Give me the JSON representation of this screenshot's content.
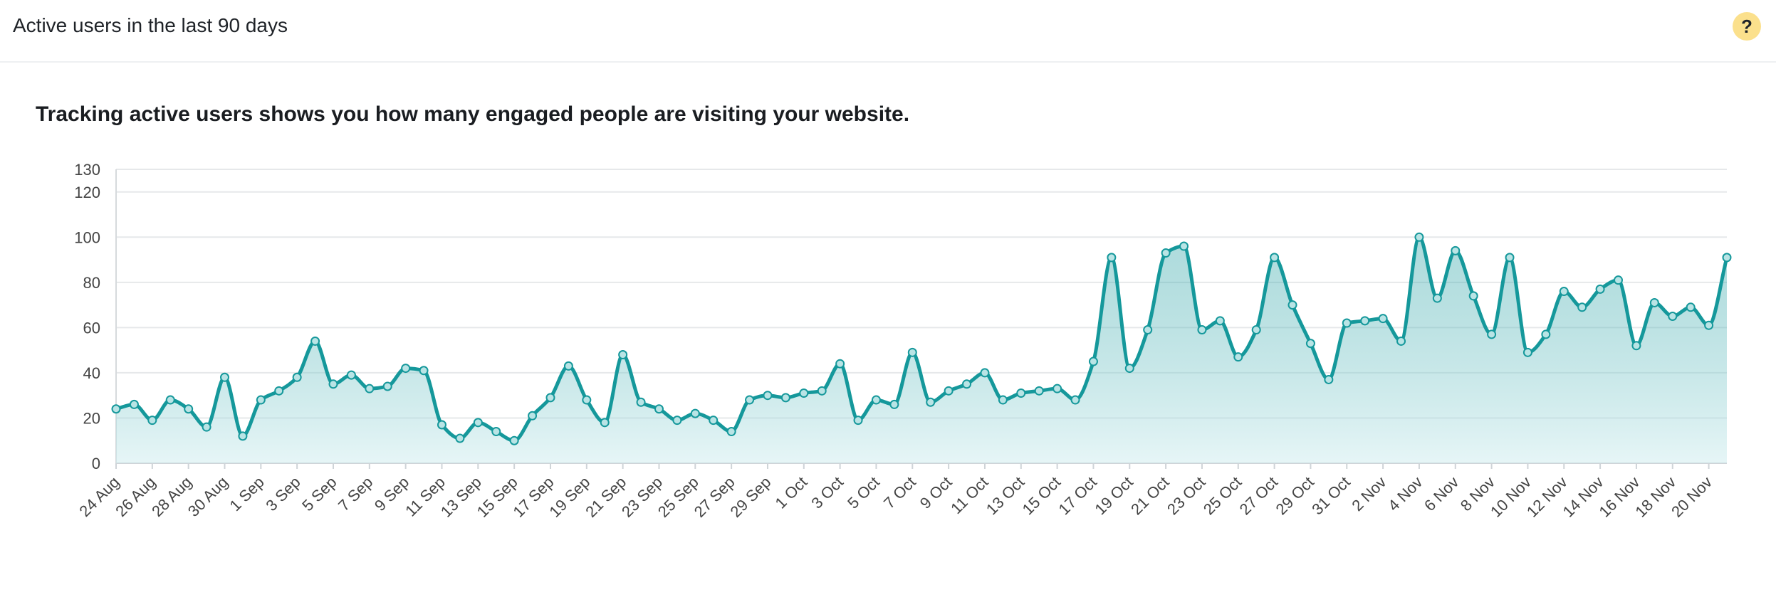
{
  "card": {
    "title": "Active users in the last 90 days",
    "help_label": "?",
    "subtitle": "Tracking active users shows you how many engaged people are visiting your website."
  },
  "colors": {
    "line": "#15989b",
    "fill": "#cdecee",
    "grid": "#e6e8ea",
    "axis_text": "#444444",
    "help_bg": "#fbe08c"
  },
  "chart_data": {
    "type": "area",
    "title": "",
    "xlabel": "",
    "ylabel": "",
    "ylim": [
      0,
      130
    ],
    "yticks": [
      0,
      20,
      40,
      60,
      80,
      100,
      120,
      130
    ],
    "grid": true,
    "smooth": true,
    "x_tick_labels": [
      "24 Aug",
      "26 Aug",
      "28 Aug",
      "30 Aug",
      "1 Sep",
      "3 Sep",
      "5 Sep",
      "7 Sep",
      "9 Sep",
      "11 Sep",
      "13 Sep",
      "15 Sep",
      "17 Sep",
      "19 Sep",
      "21 Sep",
      "23 Sep",
      "25 Sep",
      "27 Sep",
      "29 Sep",
      "1 Oct",
      "3 Oct",
      "5 Oct",
      "7 Oct",
      "9 Oct",
      "11 Oct",
      "13 Oct",
      "15 Oct",
      "17 Oct",
      "19 Oct",
      "21 Oct",
      "23 Oct",
      "25 Oct",
      "27 Oct",
      "29 Oct",
      "31 Oct",
      "2 Nov",
      "4 Nov",
      "6 Nov",
      "8 Nov",
      "10 Nov",
      "12 Nov",
      "14 Nov",
      "16 Nov",
      "18 Nov",
      "20 Nov"
    ],
    "x": [
      "24 Aug",
      "25 Aug",
      "26 Aug",
      "27 Aug",
      "28 Aug",
      "29 Aug",
      "30 Aug",
      "31 Aug",
      "1 Sep",
      "2 Sep",
      "3 Sep",
      "4 Sep",
      "5 Sep",
      "6 Sep",
      "7 Sep",
      "8 Sep",
      "9 Sep",
      "10 Sep",
      "11 Sep",
      "12 Sep",
      "13 Sep",
      "14 Sep",
      "15 Sep",
      "16 Sep",
      "17 Sep",
      "18 Sep",
      "19 Sep",
      "20 Sep",
      "21 Sep",
      "22 Sep",
      "23 Sep",
      "24 Sep",
      "25 Sep",
      "26 Sep",
      "27 Sep",
      "28 Sep",
      "29 Sep",
      "30 Sep",
      "1 Oct",
      "2 Oct",
      "3 Oct",
      "4 Oct",
      "5 Oct",
      "6 Oct",
      "7 Oct",
      "8 Oct",
      "9 Oct",
      "10 Oct",
      "11 Oct",
      "12 Oct",
      "13 Oct",
      "14 Oct",
      "15 Oct",
      "16 Oct",
      "17 Oct",
      "18 Oct",
      "19 Oct",
      "20 Oct",
      "21 Oct",
      "22 Oct",
      "23 Oct",
      "24 Oct",
      "25 Oct",
      "26 Oct",
      "27 Oct",
      "28 Oct",
      "29 Oct",
      "30 Oct",
      "31 Oct",
      "1 Nov",
      "2 Nov",
      "3 Nov",
      "4 Nov",
      "5 Nov",
      "6 Nov",
      "7 Nov",
      "8 Nov",
      "9 Nov",
      "10 Nov",
      "11 Nov",
      "12 Nov",
      "13 Nov",
      "14 Nov",
      "15 Nov",
      "16 Nov",
      "17 Nov",
      "18 Nov",
      "19 Nov",
      "20 Nov",
      "21 Nov"
    ],
    "values": [
      24,
      26,
      19,
      28,
      24,
      16,
      38,
      12,
      28,
      32,
      38,
      54,
      35,
      39,
      33,
      34,
      42,
      41,
      17,
      11,
      18,
      14,
      10,
      21,
      29,
      43,
      28,
      18,
      48,
      27,
      24,
      19,
      22,
      19,
      14,
      28,
      30,
      29,
      31,
      32,
      44,
      19,
      28,
      26,
      49,
      27,
      32,
      35,
      40,
      28,
      31,
      32,
      33,
      28,
      45,
      91,
      42,
      59,
      93,
      96,
      59,
      63,
      47,
      59,
      91,
      70,
      53,
      37,
      62,
      63,
      64,
      54,
      100,
      73,
      94,
      74,
      57,
      91,
      49,
      57,
      76,
      69,
      77,
      81,
      52,
      71,
      65,
      69,
      61,
      91
    ]
  }
}
